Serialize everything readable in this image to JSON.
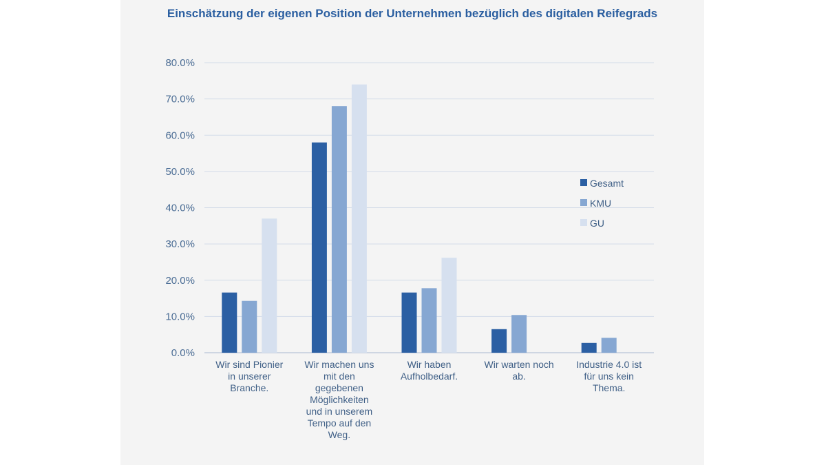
{
  "chart_data": {
    "type": "bar",
    "title": "Einschätzung der eigenen Position der Unternehmen bezüglich des digitalen Reifegrads",
    "xlabel": "",
    "ylabel": "",
    "categories": [
      "Wir sind Pionier in unserer Branche.",
      "Wir machen uns mit den gegebenen Möglichkeiten und in unserem Tempo auf den Weg.",
      "Wir haben Aufholbedarf.",
      "Wir warten noch ab.",
      "Industrie 4.0 ist für uns kein Thema."
    ],
    "category_lines": [
      [
        "Wir sind Pionier",
        "in unserer",
        "Branche."
      ],
      [
        "Wir machen uns",
        "mit den",
        "gegebenen",
        "Möglichkeiten",
        "und in unserem",
        "Tempo auf den",
        "Weg."
      ],
      [
        "Wir haben",
        "Aufholbedarf."
      ],
      [
        "Wir warten noch",
        "ab."
      ],
      [
        "Industrie 4.0 ist",
        "für uns kein",
        "Thema."
      ]
    ],
    "series": [
      {
        "name": "Gesamt",
        "color": "#2b5fa3",
        "values": [
          16.6,
          58.0,
          16.6,
          6.5,
          2.7
        ]
      },
      {
        "name": "KMU",
        "color": "#86a7d2",
        "values": [
          14.3,
          68.0,
          17.8,
          10.4,
          4.1
        ]
      },
      {
        "name": "GU",
        "color": "#d6e0ef",
        "values": [
          37.0,
          74.0,
          26.2,
          0,
          0
        ]
      }
    ],
    "ylim": [
      0,
      80
    ],
    "yticks": [
      "0.0%",
      "10.0%",
      "20.0%",
      "30.0%",
      "40.0%",
      "50.0%",
      "60.0%",
      "70.0%",
      "80.0%"
    ],
    "grid": true,
    "legend_position": "right"
  }
}
